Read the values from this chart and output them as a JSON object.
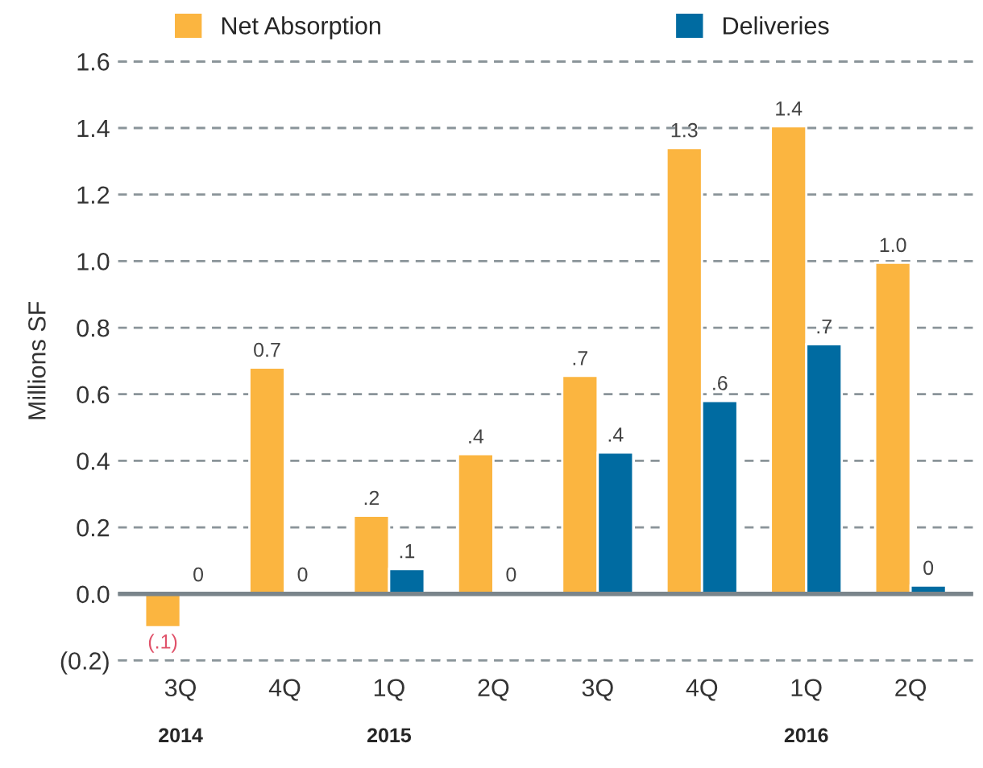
{
  "chart_data": {
    "type": "bar",
    "ylabel": "Millions SF",
    "categories": [
      "3Q\n2014",
      "4Q",
      "1Q\n2015",
      "2Q",
      "3Q",
      "4Q",
      "1Q\n2016",
      "2Q"
    ],
    "series": [
      {
        "name": "Net Absorption",
        "color": "#fbb540",
        "values": [
          -0.1,
          0.68,
          0.235,
          0.42,
          0.655,
          1.34,
          1.405,
          0.995
        ],
        "value_labels": [
          "(.1)",
          "0.7",
          ".2",
          ".4",
          ".7",
          "1.3",
          "1.4",
          "1.0"
        ]
      },
      {
        "name": "Deliveries",
        "color": "#006ba1",
        "values": [
          0.005,
          0.005,
          0.075,
          0.005,
          0.425,
          0.58,
          0.75,
          0.025
        ],
        "value_labels": [
          "0",
          "0",
          ".1",
          "0",
          ".4",
          ".6",
          ".7",
          "0"
        ]
      }
    ],
    "ylim": [
      -0.2,
      1.6
    ],
    "yticks": [
      {
        "value": -0.2,
        "label": "(0.2)"
      },
      {
        "value": 0,
        "label": "0.0"
      },
      0.2,
      0.4,
      0.6,
      0.8,
      {
        "value": 1,
        "label": "1.0"
      },
      1.2,
      1.4,
      1.6
    ],
    "grid": "y",
    "legend": "top"
  }
}
